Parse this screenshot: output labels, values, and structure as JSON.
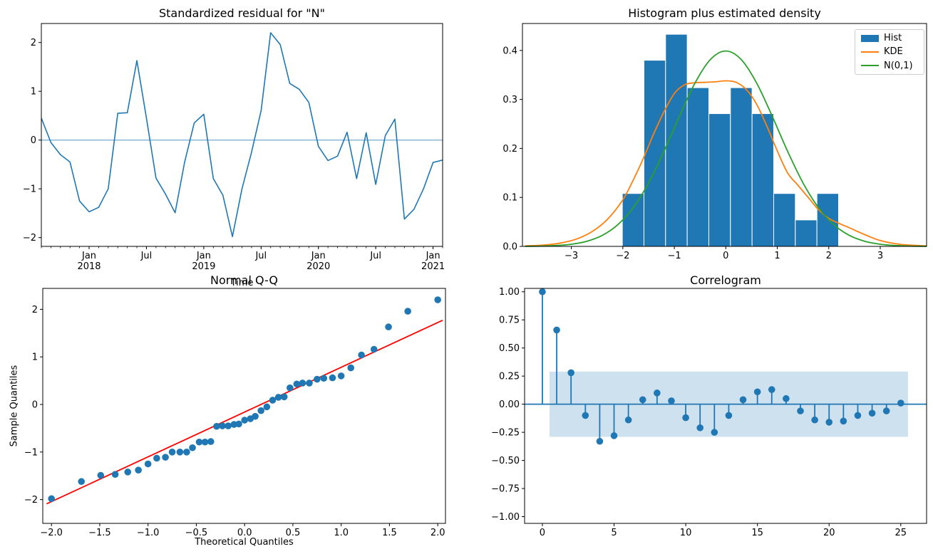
{
  "colors": {
    "series_blue": "#1f77b4",
    "kde_orange": "#ff7f0e",
    "normal_green": "#2ca02c",
    "qq_line_red": "#ff0000",
    "zero_line_light": "rgba(31,119,180,0.5)",
    "conf_band": "rgba(31,119,180,0.22)",
    "hist_bar_edge": "#ffffff",
    "spine": "#000000"
  },
  "chart_data": [
    {
      "id": "residual",
      "type": "line",
      "title": "Standardized residual for \"N\"",
      "xlabel": "Time",
      "months": [
        "2017-08",
        "2017-09",
        "2017-10",
        "2017-11",
        "2017-12",
        "2018-01",
        "2018-02",
        "2018-03",
        "2018-04",
        "2018-05",
        "2018-06",
        "2018-07",
        "2018-08",
        "2018-09",
        "2018-10",
        "2018-11",
        "2018-12",
        "2019-01",
        "2019-02",
        "2019-03",
        "2019-04",
        "2019-05",
        "2019-06",
        "2019-07",
        "2019-08",
        "2019-09",
        "2019-10",
        "2019-11",
        "2019-12",
        "2020-01",
        "2020-02",
        "2020-03",
        "2020-04",
        "2020-05",
        "2020-06",
        "2020-07",
        "2020-08",
        "2020-09",
        "2020-10",
        "2020-11",
        "2020-12",
        "2021-01",
        "2021-02"
      ],
      "values": [
        0.45,
        -0.05,
        -0.3,
        -0.45,
        -1.25,
        -1.47,
        -1.38,
        -1.0,
        0.55,
        0.56,
        1.63,
        0.45,
        -0.78,
        -1.11,
        -1.49,
        -0.45,
        0.35,
        0.53,
        -0.79,
        -1.13,
        -1.98,
        -1.0,
        -0.25,
        0.6,
        2.2,
        1.96,
        1.16,
        1.04,
        0.77,
        -0.13,
        -0.42,
        -0.33,
        0.16,
        -0.79,
        0.15,
        -0.91,
        0.09,
        0.43,
        -1.62,
        -1.42,
        -1.0,
        -0.46,
        -0.41
      ],
      "zero_line": true,
      "xlim": [
        0,
        42
      ],
      "ylim": [
        -2.18,
        2.39
      ],
      "y_ticks": {
        "values": [
          2,
          1,
          0,
          -1,
          -2
        ],
        "labels": [
          "2",
          "1",
          "0",
          "−1",
          "−2"
        ]
      },
      "x_ticks": [
        {
          "pos": 5,
          "label": "Jan",
          "year": "2018"
        },
        {
          "pos": 11,
          "label": "Jul"
        },
        {
          "pos": 17,
          "label": "Jan",
          "year": "2019"
        },
        {
          "pos": 23,
          "label": "Jul"
        },
        {
          "pos": 29,
          "label": "Jan",
          "year": "2020"
        },
        {
          "pos": 35,
          "label": "Jul"
        },
        {
          "pos": 41,
          "label": "Jan",
          "year": "2021"
        }
      ],
      "minor_ticks_every": 1
    },
    {
      "id": "histogram",
      "type": "histogram",
      "title": "Histogram plus estimated density",
      "bins": {
        "start": -2.01,
        "width": 0.42,
        "heights": [
          0.108,
          0.38,
          0.433,
          0.324,
          0.271,
          0.324,
          0.271,
          0.108,
          0.054,
          0.108
        ]
      },
      "kde": {
        "x": [
          -3.9,
          -3.5,
          -3.2,
          -2.9,
          -2.6,
          -2.3,
          -2.0,
          -1.8,
          -1.6,
          -1.4,
          -1.2,
          -1.0,
          -0.8,
          -0.6,
          -0.4,
          -0.2,
          0.0,
          0.2,
          0.4,
          0.6,
          0.8,
          1.0,
          1.2,
          1.4,
          1.6,
          1.8,
          2.0,
          2.2,
          2.4,
          2.7,
          3.0,
          3.4,
          3.9
        ],
        "y": [
          0.001,
          0.003,
          0.007,
          0.015,
          0.03,
          0.055,
          0.095,
          0.135,
          0.18,
          0.23,
          0.275,
          0.312,
          0.33,
          0.334,
          0.335,
          0.336,
          0.338,
          0.335,
          0.32,
          0.29,
          0.245,
          0.195,
          0.15,
          0.125,
          0.1,
          0.075,
          0.057,
          0.047,
          0.038,
          0.024,
          0.012,
          0.004,
          0.001
        ]
      },
      "normal": {
        "x": [
          -3.9,
          -3.6,
          -3.3,
          -3.0,
          -2.7,
          -2.4,
          -2.1,
          -1.8,
          -1.5,
          -1.2,
          -0.9,
          -0.6,
          -0.3,
          0.0,
          0.3,
          0.6,
          0.9,
          1.2,
          1.5,
          1.8,
          2.1,
          2.4,
          2.7,
          3.0,
          3.3,
          3.6,
          3.9
        ],
        "y": [
          0.0002,
          0.0006,
          0.0017,
          0.0044,
          0.0104,
          0.0224,
          0.044,
          0.079,
          0.1295,
          0.1942,
          0.2661,
          0.3332,
          0.3814,
          0.3989,
          0.3814,
          0.3332,
          0.2661,
          0.1942,
          0.1295,
          0.079,
          0.044,
          0.0224,
          0.0104,
          0.0044,
          0.0017,
          0.0006,
          0.0002
        ]
      },
      "legend": {
        "items": [
          {
            "label": "Hist",
            "type": "patch",
            "color": "#1f77b4"
          },
          {
            "label": "KDE",
            "type": "line",
            "color": "#ff7f0e"
          },
          {
            "label": "N(0,1)",
            "type": "line",
            "color": "#2ca02c"
          }
        ]
      },
      "xlim": [
        -3.95,
        3.9
      ],
      "ylim": [
        0,
        0.455
      ],
      "x_ticks": {
        "values": [
          -3,
          -2,
          -1,
          0,
          1,
          2,
          3
        ],
        "labels": [
          "−3",
          "−2",
          "−1",
          "0",
          "1",
          "2",
          "3"
        ]
      },
      "y_ticks": {
        "values": [
          0,
          0.1,
          0.2,
          0.3,
          0.4
        ],
        "labels": [
          "0.0",
          "0.1",
          "0.2",
          "0.3",
          "0.4"
        ]
      }
    },
    {
      "id": "qq",
      "type": "scatter",
      "title": "Normal Q-Q",
      "xlabel": "Theoretical Quantiles",
      "ylabel": "Sample Quantiles",
      "theoretical": [
        -2.0,
        -1.69,
        -1.49,
        -1.34,
        -1.21,
        -1.1,
        -1.0,
        -0.91,
        -0.82,
        -0.75,
        -0.67,
        -0.6,
        -0.54,
        -0.47,
        -0.41,
        -0.35,
        -0.29,
        -0.23,
        -0.17,
        -0.11,
        -0.06,
        0.0,
        0.06,
        0.11,
        0.17,
        0.23,
        0.29,
        0.35,
        0.41,
        0.47,
        0.54,
        0.6,
        0.67,
        0.75,
        0.82,
        0.91,
        1.0,
        1.1,
        1.21,
        1.34,
        1.49,
        1.69,
        2.0
      ],
      "sample": [
        -1.98,
        -1.62,
        -1.49,
        -1.47,
        -1.42,
        -1.38,
        -1.25,
        -1.13,
        -1.11,
        -1.0,
        -1.0,
        -1.0,
        -0.91,
        -0.79,
        -0.79,
        -0.78,
        -0.46,
        -0.45,
        -0.45,
        -0.42,
        -0.41,
        -0.33,
        -0.3,
        -0.25,
        -0.13,
        -0.05,
        0.09,
        0.15,
        0.16,
        0.35,
        0.43,
        0.45,
        0.45,
        0.53,
        0.55,
        0.56,
        0.6,
        0.77,
        1.04,
        1.16,
        1.63,
        1.96,
        2.2
      ],
      "fit_line": {
        "x1": -2.05,
        "y1": -2.09,
        "x2": 2.05,
        "y2": 1.77
      },
      "xlim": [
        -2.09,
        2.08
      ],
      "ylim": [
        -2.5,
        2.44
      ],
      "x_ticks": {
        "values": [
          -2.0,
          -1.5,
          -1.0,
          -0.5,
          0.0,
          0.5,
          1.0,
          1.5,
          2.0
        ],
        "labels": [
          "−2.0",
          "−1.5",
          "−1.0",
          "−0.5",
          "0.0",
          "0.5",
          "1.0",
          "1.5",
          "2.0"
        ]
      },
      "y_ticks": {
        "values": [
          2,
          1,
          0,
          -1,
          -2
        ],
        "labels": [
          "2",
          "1",
          "0",
          "−1",
          "−2"
        ]
      }
    },
    {
      "id": "correlogram",
      "type": "stem",
      "title": "Correlogram",
      "lags": [
        0,
        1,
        2,
        3,
        4,
        5,
        6,
        7,
        8,
        9,
        10,
        11,
        12,
        13,
        14,
        15,
        16,
        17,
        18,
        19,
        20,
        21,
        22,
        23,
        24,
        25
      ],
      "values": [
        1.0,
        0.66,
        0.28,
        -0.1,
        -0.33,
        -0.28,
        -0.14,
        0.04,
        0.1,
        0.03,
        -0.12,
        -0.21,
        -0.25,
        -0.1,
        0.04,
        0.11,
        0.13,
        0.05,
        -0.06,
        -0.14,
        -0.16,
        -0.15,
        -0.1,
        -0.08,
        -0.06,
        0.01
      ],
      "conf_band": {
        "x0": 0.5,
        "x1": 25.5,
        "lo": -0.29,
        "hi": 0.29
      },
      "zero_line": true,
      "xlim": [
        -1.24,
        26.8
      ],
      "ylim": [
        -1.06,
        1.03
      ],
      "x_ticks": {
        "values": [
          0,
          5,
          10,
          15,
          20,
          25
        ],
        "labels": [
          "0",
          "5",
          "10",
          "15",
          "20",
          "25"
        ]
      },
      "y_ticks": {
        "values": [
          1.0,
          0.75,
          0.5,
          0.25,
          0.0,
          -0.25,
          -0.5,
          -0.75,
          -1.0
        ],
        "labels": [
          "1.00",
          "0.75",
          "0.50",
          "0.25",
          "0.00",
          "−0.25",
          "−0.50",
          "−0.75",
          "−1.00"
        ]
      }
    }
  ]
}
